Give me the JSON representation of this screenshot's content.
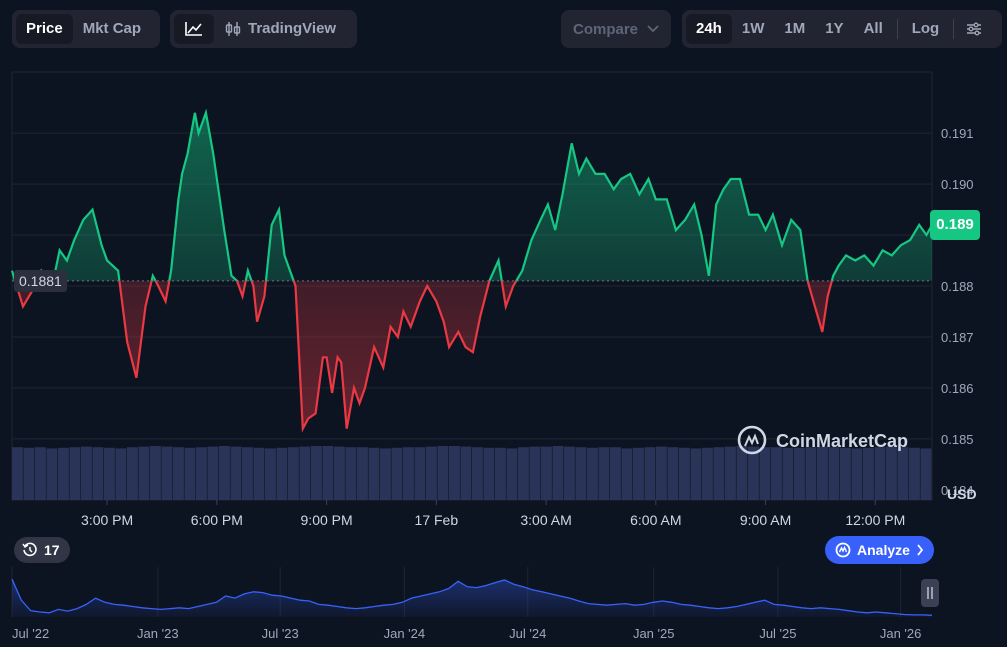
{
  "toolbar": {
    "price_tab": "Price",
    "mktcap_tab": "Mkt Cap",
    "tradingview": "TradingView",
    "compare": "Compare",
    "ranges": [
      "24h",
      "1W",
      "1M",
      "1Y",
      "All"
    ],
    "active_range": "24h",
    "log": "Log"
  },
  "badges": {
    "current_price": "0.189",
    "reference_price": "0.1881",
    "history_count": "17",
    "analyze": "Analyze",
    "currency": "USD",
    "watermark": "CoinMarketCap"
  },
  "colors": {
    "up": "#16c784",
    "down": "#ea3943",
    "accent": "#3861fb",
    "background": "#0d1421"
  },
  "chart_data": [
    {
      "type": "area",
      "ylim": [
        0.1838,
        0.1922
      ],
      "baseline": 0.1881,
      "y_ticks": [
        "0.191",
        "0.190",
        "0.189",
        "0.188",
        "0.187",
        "0.186",
        "0.185",
        "0.184"
      ],
      "y_tick_values": [
        0.191,
        0.19,
        0.189,
        0.188,
        0.187,
        0.186,
        0.185,
        0.184
      ],
      "x_ticks": [
        "3:00 PM",
        "6:00 PM",
        "9:00 PM",
        "17 Feb",
        "3:00 AM",
        "6:00 AM",
        "9:00 AM",
        "12:00 PM"
      ],
      "x_tick_hours": [
        3,
        6,
        9,
        12,
        15,
        18,
        21,
        24
      ],
      "x_range_hours": [
        0.4,
        25.55
      ],
      "series": [
        {
          "hours": [
            0.4,
            0.7,
            0.95,
            1.2,
            1.5,
            1.7,
            1.9,
            2.1,
            2.35,
            2.6,
            2.85,
            3.0,
            3.3,
            3.55,
            3.8,
            4.05,
            4.25,
            4.4,
            4.6,
            4.75,
            4.95,
            5.05,
            5.2,
            5.4,
            5.5,
            5.7,
            5.9,
            6.2,
            6.4,
            6.55,
            6.7,
            6.85,
            7.0,
            7.1,
            7.3,
            7.5,
            7.7,
            7.85,
            8.0,
            8.15,
            8.35,
            8.5,
            8.7,
            8.9,
            9.0,
            9.15,
            9.3,
            9.4,
            9.55,
            9.75,
            9.9,
            10.05,
            10.3,
            10.55,
            10.75,
            10.95,
            11.1,
            11.3,
            11.55,
            11.75,
            12.0,
            12.2,
            12.35,
            12.6,
            12.8,
            13.0,
            13.2,
            13.45,
            13.7,
            13.9,
            14.1,
            14.35,
            14.6,
            14.85,
            15.05,
            15.25,
            15.45,
            15.7,
            15.9,
            16.1,
            16.35,
            16.6,
            16.85,
            17.05,
            17.3,
            17.55,
            17.8,
            18.0,
            18.3,
            18.55,
            18.8,
            19.05,
            19.25,
            19.45,
            19.65,
            19.85,
            20.05,
            20.3,
            20.55,
            20.8,
            21.0,
            21.2,
            21.45,
            21.7,
            21.95,
            22.15,
            22.35,
            22.55,
            22.7,
            22.85,
            23.0,
            23.2,
            23.45,
            23.7,
            23.95,
            24.2,
            24.45,
            24.7,
            24.95,
            25.2,
            25.4,
            25.55
          ],
          "values": [
            0.1883,
            0.1876,
            0.1879,
            0.1883,
            0.188,
            0.1887,
            0.1885,
            0.1889,
            0.1893,
            0.1895,
            0.1888,
            0.1885,
            0.1883,
            0.1869,
            0.1862,
            0.1876,
            0.1882,
            0.188,
            0.1877,
            0.1883,
            0.1897,
            0.1902,
            0.1906,
            0.1914,
            0.191,
            0.1914,
            0.1906,
            0.1891,
            0.1882,
            0.1881,
            0.1878,
            0.1883,
            0.188,
            0.1873,
            0.1878,
            0.1892,
            0.1895,
            0.1886,
            0.1883,
            0.188,
            0.1852,
            0.1854,
            0.1855,
            0.1866,
            0.1866,
            0.1859,
            0.1866,
            0.1865,
            0.1852,
            0.186,
            0.1857,
            0.186,
            0.1868,
            0.1864,
            0.1872,
            0.187,
            0.1875,
            0.1872,
            0.1877,
            0.188,
            0.1877,
            0.1873,
            0.1868,
            0.1871,
            0.1868,
            0.1867,
            0.1874,
            0.1881,
            0.1885,
            0.1876,
            0.188,
            0.1883,
            0.1889,
            0.1893,
            0.1896,
            0.1891,
            0.1898,
            0.1908,
            0.1902,
            0.1905,
            0.1902,
            0.1902,
            0.1899,
            0.1901,
            0.1902,
            0.1898,
            0.1901,
            0.1897,
            0.1897,
            0.1891,
            0.1893,
            0.1896,
            0.189,
            0.1882,
            0.1896,
            0.1899,
            0.1901,
            0.1901,
            0.1894,
            0.1894,
            0.1891,
            0.1894,
            0.1888,
            0.1893,
            0.1891,
            0.1881,
            0.1876,
            0.1871,
            0.1878,
            0.1882,
            0.1884,
            0.1886,
            0.1885,
            0.1886,
            0.1884,
            0.1887,
            0.1886,
            0.1888,
            0.1889,
            0.1892,
            0.189,
            0.1892
          ]
        }
      ]
    },
    {
      "type": "bar",
      "title": "",
      "values": [
        0.88,
        0.87,
        0.88,
        0.86,
        0.87,
        0.88,
        0.89,
        0.88,
        0.87,
        0.86,
        0.88,
        0.89,
        0.9,
        0.89,
        0.88,
        0.87,
        0.88,
        0.89,
        0.9,
        0.89,
        0.88,
        0.87,
        0.86,
        0.87,
        0.88,
        0.89,
        0.9,
        0.9,
        0.89,
        0.88,
        0.88,
        0.87,
        0.86,
        0.87,
        0.88,
        0.88,
        0.89,
        0.9,
        0.9,
        0.89,
        0.88,
        0.87,
        0.87,
        0.86,
        0.88,
        0.89,
        0.89,
        0.9,
        0.89,
        0.88,
        0.87,
        0.88,
        0.88,
        0.86,
        0.87,
        0.88,
        0.89,
        0.88,
        0.87,
        0.86,
        0.87,
        0.88,
        0.89,
        0.9,
        0.89,
        0.88,
        0.88,
        0.87,
        0.87,
        0.88,
        0.89,
        0.88,
        0.87,
        0.86,
        0.87,
        0.88,
        0.89,
        0.88,
        0.87,
        0.86
      ]
    },
    {
      "type": "area",
      "x_ticks": [
        "Jul '22",
        "Jan '23",
        "Jul '23",
        "Jan '24",
        "Jul '24",
        "Jan '25",
        "Jul '25",
        "Jan '26"
      ],
      "x_tick_positions": [
        0.0,
        0.1585,
        0.2915,
        0.4265,
        0.5606,
        0.6975,
        0.8325,
        0.9659
      ],
      "series": [
        {
          "values": [
            0.9,
            0.4,
            0.15,
            0.12,
            0.1,
            0.18,
            0.14,
            0.2,
            0.3,
            0.45,
            0.35,
            0.3,
            0.28,
            0.25,
            0.22,
            0.2,
            0.18,
            0.2,
            0.22,
            0.2,
            0.25,
            0.3,
            0.35,
            0.5,
            0.45,
            0.55,
            0.6,
            0.58,
            0.52,
            0.5,
            0.45,
            0.4,
            0.38,
            0.3,
            0.28,
            0.25,
            0.22,
            0.2,
            0.22,
            0.25,
            0.28,
            0.3,
            0.35,
            0.45,
            0.5,
            0.55,
            0.6,
            0.68,
            0.85,
            0.72,
            0.7,
            0.75,
            0.82,
            0.88,
            0.78,
            0.72,
            0.65,
            0.6,
            0.55,
            0.5,
            0.45,
            0.38,
            0.32,
            0.3,
            0.28,
            0.3,
            0.32,
            0.28,
            0.3,
            0.35,
            0.38,
            0.35,
            0.3,
            0.28,
            0.25,
            0.22,
            0.2,
            0.22,
            0.25,
            0.3,
            0.35,
            0.4,
            0.3,
            0.28,
            0.25,
            0.22,
            0.2,
            0.22,
            0.2,
            0.18,
            0.15,
            0.12,
            0.1,
            0.12,
            0.1,
            0.08,
            0.06,
            0.05,
            0.05,
            0.04
          ]
        }
      ]
    }
  ]
}
